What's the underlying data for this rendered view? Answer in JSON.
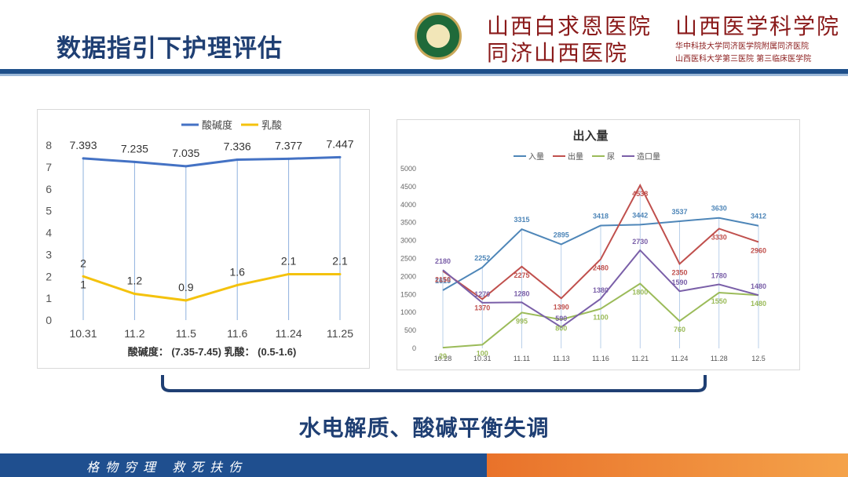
{
  "header": {
    "title": "数据指引下护理评估",
    "hospital1_line1": "山西白求恩医院",
    "hospital1_line2": "同济山西医院",
    "hospital2_line1": "山西医学科学院",
    "hospital2_line2": "华中科技大学同济医学院附属同济医院",
    "hospital2_line3": "山西医科大学第三医院 第三临床医学院"
  },
  "chart_data": [
    {
      "type": "line",
      "legend": [
        "酸碱度",
        "乳酸"
      ],
      "categories": [
        "10.31",
        "11.2",
        "11.5",
        "11.6",
        "11.24",
        "11.25"
      ],
      "series": [
        {
          "name": "酸碱度",
          "values": [
            7.393,
            7.235,
            7.035,
            7.336,
            7.377,
            7.447
          ],
          "labels": [
            "7.393",
            "7.235",
            "7.035",
            "7.336",
            "7.377",
            "7.447"
          ],
          "color": "#4472c4"
        },
        {
          "name": "乳酸",
          "values": [
            2,
            1.2,
            0.9,
            1.6,
            2.1,
            2.1
          ],
          "labels": [
            "2",
            "1.2",
            "0.9",
            "1.6",
            "2.1",
            "2.1"
          ],
          "color": "#f4c20d"
        }
      ],
      "ylim": [
        0,
        8
      ],
      "yticks": [
        "0",
        "1",
        "2",
        "3",
        "4",
        "5",
        "6",
        "7",
        "8"
      ],
      "extra_label": "1",
      "note": "酸碱度： (7.35-7.45)   乳酸： (0.5-1.6)",
      "grid": "vertical drop lines"
    },
    {
      "type": "line",
      "title": "出入量",
      "legend": [
        "入量",
        "出量",
        "尿",
        "造口量"
      ],
      "categories": [
        "10.28",
        "10.31",
        "11.11",
        "11.13",
        "11.16",
        "11.21",
        "11.24",
        "11.28",
        "12.5"
      ],
      "series": [
        {
          "name": "入量",
          "values": [
            1615,
            2252,
            3315,
            2895,
            3418,
            3442,
            3537,
            3630,
            3412
          ],
          "color": "#4e86b8"
        },
        {
          "name": "出量",
          "values": [
            2150,
            1370,
            2275,
            1390,
            2480,
            4538,
            2350,
            3330,
            2960
          ],
          "color": "#c0504d"
        },
        {
          "name": "尿",
          "values": [
            20,
            100,
            995,
            800,
            1100,
            1800,
            760,
            1550,
            1480
          ],
          "color": "#9bbb59"
        },
        {
          "name": "造口量",
          "values": [
            2180,
            1270,
            1280,
            590,
            1380,
            2730,
            1590,
            1780,
            1480
          ],
          "color": "#7a5fa8"
        }
      ],
      "point_labels": [
        {
          "series": "入量",
          "labels": [
            "1615",
            "2252",
            "3315",
            "2895",
            "3418",
            "3442",
            "3537",
            "3630",
            "3412"
          ]
        },
        {
          "series": "出量",
          "labels": [
            "2150",
            "1370",
            "2275",
            "1390",
            "2480",
            "4538",
            "2350",
            "3330",
            "2960"
          ]
        },
        {
          "series": "尿",
          "labels": [
            "20",
            "100",
            "995",
            "800",
            "1100",
            "1800",
            "760",
            "1550",
            "1480"
          ]
        },
        {
          "series": "造口量",
          "labels": [
            "2180",
            "1270",
            "1280",
            "590",
            "1380",
            "2730",
            "1590",
            "1780",
            "1480"
          ]
        }
      ],
      "ylim": [
        0,
        5000
      ],
      "yticks": [
        "0",
        "500",
        "1000",
        "1500",
        "2000",
        "2500",
        "3000",
        "3500",
        "4000",
        "4500",
        "5000"
      ],
      "legend_position": "top"
    }
  ],
  "conclusion": "水电解质、酸碱平衡失调",
  "footer": {
    "motto": "格物穷理  救死扶伤"
  }
}
